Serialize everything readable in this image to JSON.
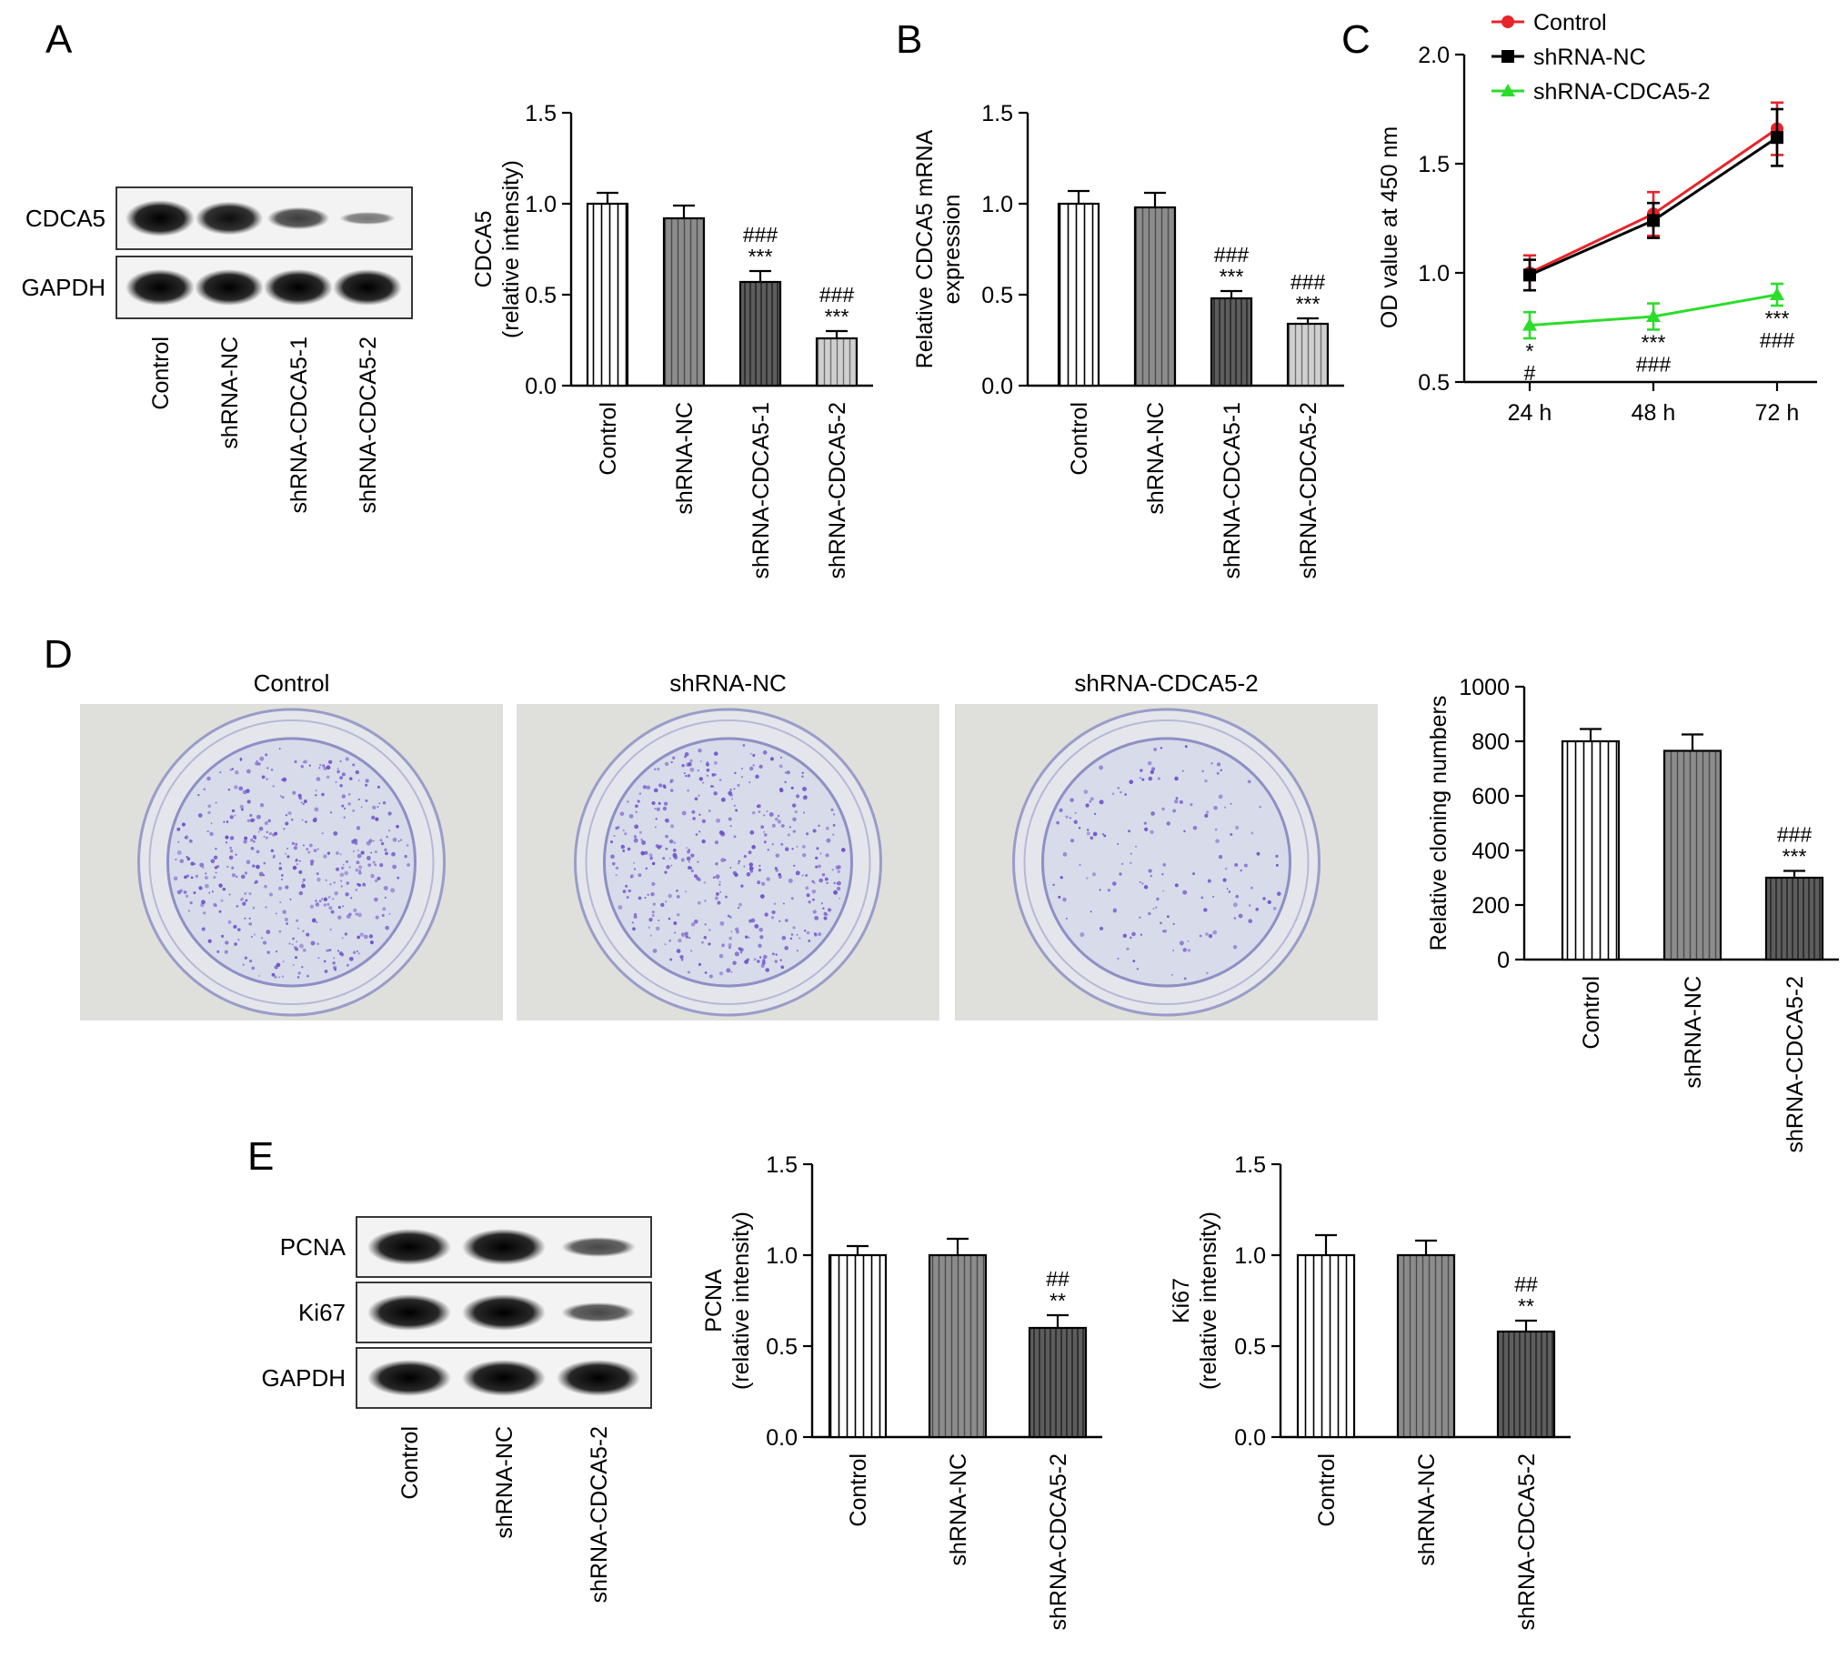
{
  "panels": {
    "A": "A",
    "B": "B",
    "C": "C",
    "D": "D",
    "E": "E"
  },
  "blots": {
    "A": {
      "rows": [
        "CDCA5",
        "GAPDH"
      ],
      "lanes": [
        "Control",
        "shRNA-NC",
        "shRNA-CDCA5-1",
        "shRNA-CDCA5-2"
      ],
      "intensity": [
        [
          1.0,
          0.92,
          0.62,
          0.25
        ],
        [
          1.0,
          1.0,
          1.0,
          1.0
        ]
      ]
    },
    "E": {
      "rows": [
        "PCNA",
        "Ki67",
        "GAPDH"
      ],
      "lanes": [
        "Control",
        "shRNA-NC",
        "shRNA-CDCA5-2"
      ],
      "intensity": [
        [
          1.0,
          1.0,
          0.55
        ],
        [
          1.0,
          1.0,
          0.55
        ],
        [
          1.0,
          1.0,
          1.0
        ]
      ]
    }
  },
  "plates": {
    "titles": [
      "Control",
      "shRNA-NC",
      "shRNA-CDCA5-2"
    ],
    "colony_density": [
      800,
      765,
      300
    ],
    "colony_color": "#6a4fc9"
  },
  "chart_data": [
    {
      "id": "A-bar",
      "type": "bar",
      "categories": [
        "Control",
        "shRNA-NC",
        "shRNA-CDCA5-1",
        "shRNA-CDCA5-2"
      ],
      "values": [
        1.0,
        0.92,
        0.57,
        0.26
      ],
      "errors": [
        0.06,
        0.07,
        0.06,
        0.04
      ],
      "significance": [
        [],
        [],
        [
          "###",
          "***"
        ],
        [
          "###",
          "***"
        ]
      ],
      "ylabel": [
        "CDCA5",
        "(relative intensity)"
      ],
      "ylim": [
        0,
        1.5
      ],
      "yticks": [
        "0.0",
        "0.5",
        "1.0",
        "1.5"
      ],
      "patterns": [
        "vlines",
        "gray",
        "dark",
        "lightgray"
      ]
    },
    {
      "id": "B-bar",
      "type": "bar",
      "categories": [
        "Control",
        "shRNA-NC",
        "shRNA-CDCA5-1",
        "shRNA-CDCA5-2"
      ],
      "values": [
        1.0,
        0.98,
        0.48,
        0.34
      ],
      "errors": [
        0.07,
        0.08,
        0.04,
        0.03
      ],
      "significance": [
        [],
        [],
        [
          "###",
          "***"
        ],
        [
          "###",
          "***"
        ]
      ],
      "ylabel": [
        "Relative CDCA5 mRNA",
        "expression"
      ],
      "ylim": [
        0,
        1.5
      ],
      "yticks": [
        "0.0",
        "0.5",
        "1.0",
        "1.5"
      ],
      "patterns": [
        "vlines",
        "gray",
        "dark",
        "lightgray"
      ]
    },
    {
      "id": "C-line",
      "type": "line",
      "x": [
        "24 h",
        "48 h",
        "72 h"
      ],
      "series": [
        {
          "name": "Control",
          "color": "#e8242a",
          "marker": "circle",
          "values": [
            1.0,
            1.27,
            1.66
          ],
          "errors": [
            0.08,
            0.1,
            0.12
          ]
        },
        {
          "name": "shRNA-NC",
          "color": "#000000",
          "marker": "square",
          "values": [
            0.99,
            1.24,
            1.62
          ],
          "errors": [
            0.07,
            0.08,
            0.13
          ]
        },
        {
          "name": "shRNA-CDCA5-2",
          "color": "#2bdd2b",
          "marker": "triangle",
          "values": [
            0.76,
            0.8,
            0.9
          ],
          "errors": [
            0.06,
            0.06,
            0.05
          ]
        }
      ],
      "significance": [
        [
          "*",
          "#"
        ],
        [
          "***",
          "###"
        ],
        [
          "***",
          "###"
        ]
      ],
      "ylabel": "OD value at 450 nm",
      "ylim": [
        0.5,
        2.0
      ],
      "yticks": [
        "0.5",
        "1.0",
        "1.5",
        "2.0"
      ],
      "legend": "top-left"
    },
    {
      "id": "D-bar",
      "type": "bar",
      "categories": [
        "Control",
        "shRNA-NC",
        "shRNA-CDCA5-2"
      ],
      "values": [
        800,
        765,
        300
      ],
      "errors": [
        45,
        60,
        25
      ],
      "significance": [
        [],
        [],
        [
          "###",
          "***"
        ]
      ],
      "ylabel": [
        "Relative cloning numbers"
      ],
      "ylim": [
        0,
        1000
      ],
      "yticks": [
        "0",
        "200",
        "400",
        "600",
        "800",
        "1000"
      ],
      "patterns": [
        "vlines",
        "gray",
        "dark"
      ]
    },
    {
      "id": "E-bar1",
      "type": "bar",
      "categories": [
        "Control",
        "shRNA-NC",
        "shRNA-CDCA5-2"
      ],
      "values": [
        1.0,
        1.0,
        0.6
      ],
      "errors": [
        0.05,
        0.09,
        0.07
      ],
      "significance": [
        [],
        [],
        [
          "##",
          "**"
        ]
      ],
      "ylabel": [
        "PCNA",
        "(relative intensity)"
      ],
      "ylim": [
        0,
        1.5
      ],
      "yticks": [
        "0.0",
        "0.5",
        "1.0",
        "1.5"
      ],
      "patterns": [
        "vlines",
        "gray",
        "dark"
      ]
    },
    {
      "id": "E-bar2",
      "type": "bar",
      "categories": [
        "Control",
        "shRNA-NC",
        "shRNA-CDCA5-2"
      ],
      "values": [
        1.0,
        1.0,
        0.58
      ],
      "errors": [
        0.11,
        0.08,
        0.06
      ],
      "significance": [
        [],
        [],
        [
          "##",
          "**"
        ]
      ],
      "ylabel": [
        "Ki67",
        "(relative intensity)"
      ],
      "ylim": [
        0,
        1.5
      ],
      "yticks": [
        "0.0",
        "0.5",
        "1.0",
        "1.5"
      ],
      "patterns": [
        "vlines",
        "gray",
        "dark"
      ]
    }
  ]
}
